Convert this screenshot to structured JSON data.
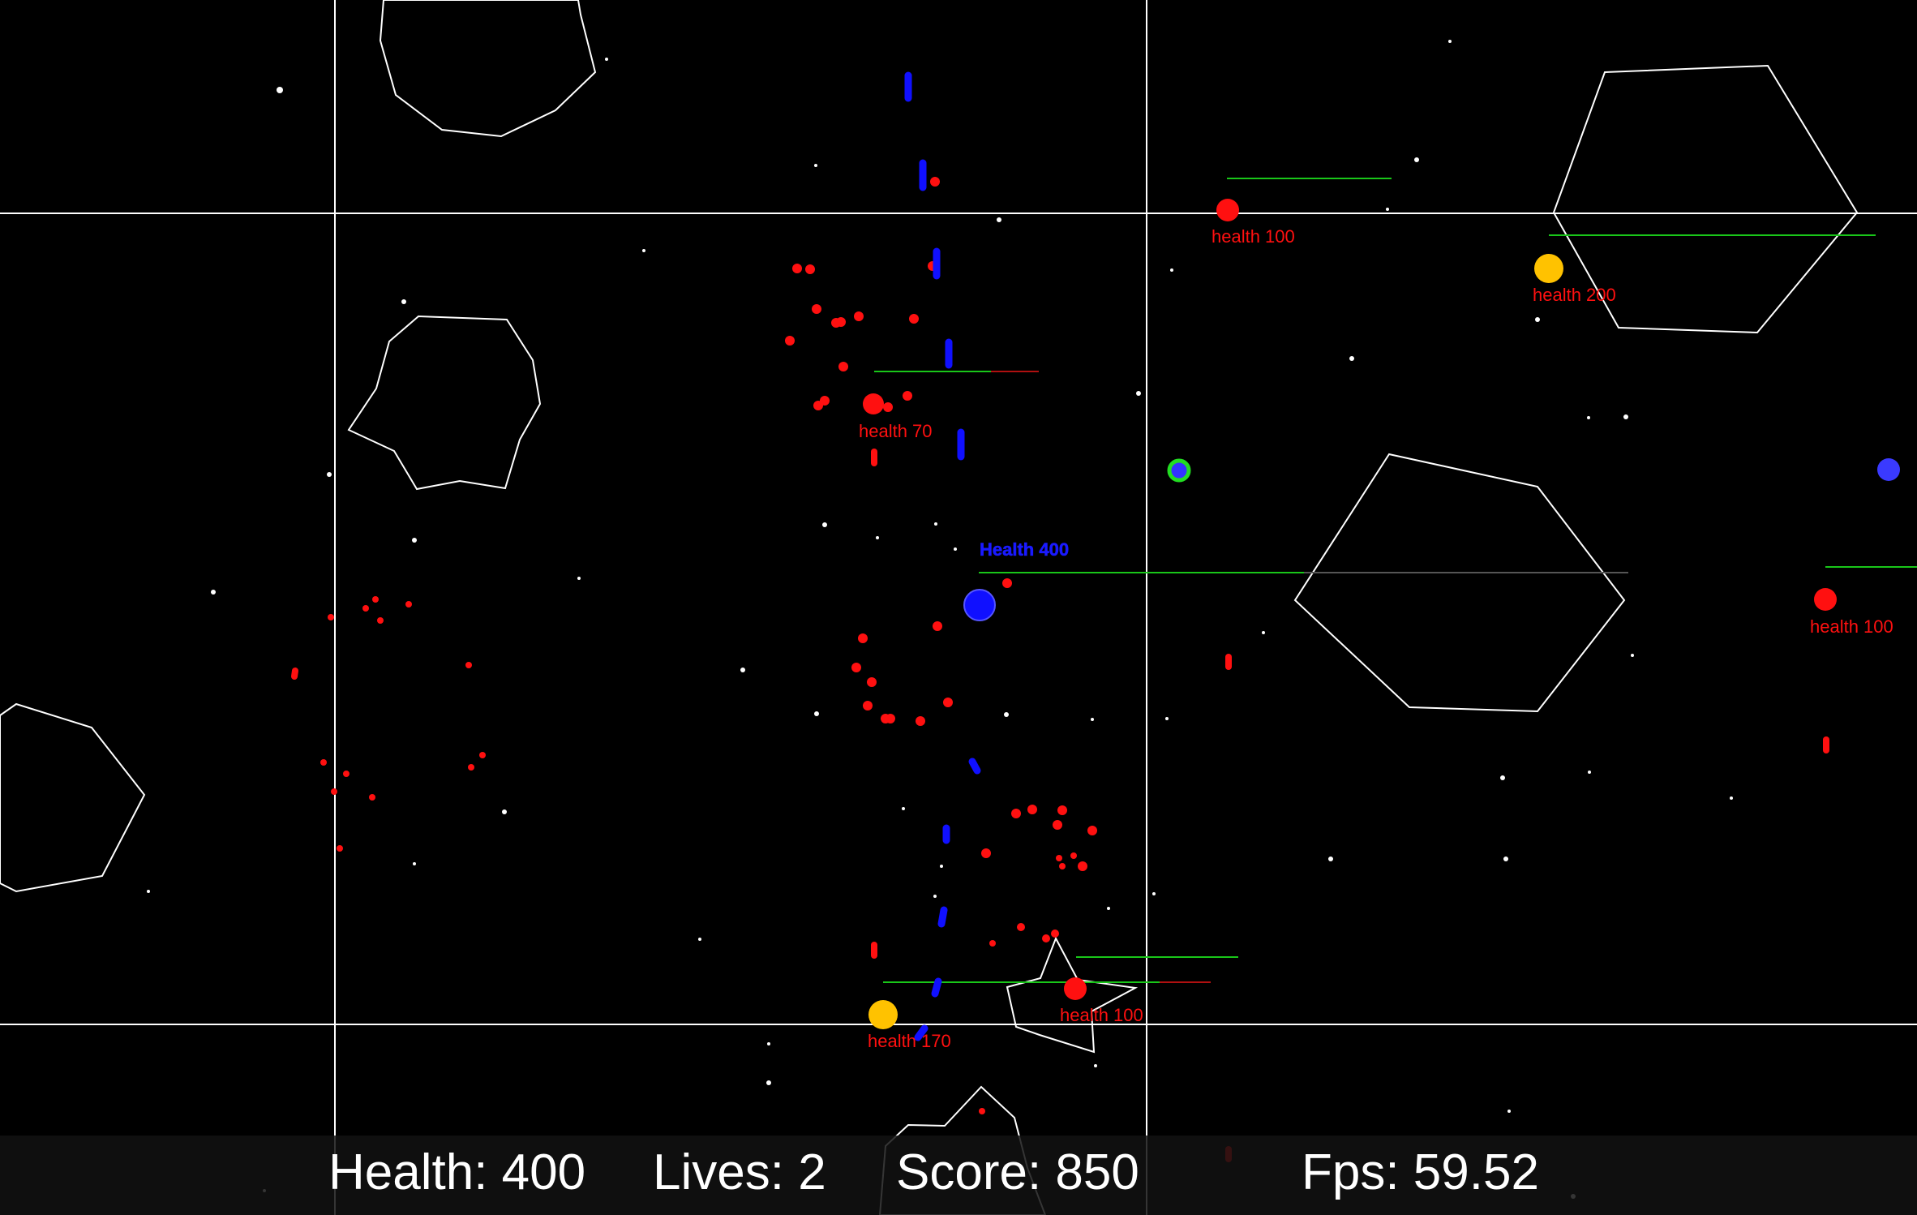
{
  "hud": {
    "health_label": "Health: 400",
    "lives_label": "Lives: 2",
    "score_label": "Score: 850",
    "fps_label": "Fps: 59.52"
  },
  "player": {
    "health_label": "Health 400",
    "health_fraction": 0.5,
    "color": "#1010ff"
  },
  "enemies": [
    {
      "label": "health 100",
      "color": "#ff1010",
      "health_fraction": 1.0
    },
    {
      "label": "health 200",
      "color": "#ffc200",
      "health_fraction": 1.0
    },
    {
      "label": "health 70",
      "color": "#ff1010",
      "health_fraction": 0.7
    },
    {
      "label": "health 100",
      "color": "#ff1010",
      "health_fraction": 1.0
    },
    {
      "label": "health 100",
      "color": "#ff1010",
      "health_fraction": 0.6
    },
    {
      "label": "health 170",
      "color": "#ffc200",
      "health_fraction": 1.0
    }
  ],
  "colors": {
    "background": "#000000",
    "grid": "#ffffff",
    "asteroid_outline": "#ffffff",
    "health_bar": "#19c619",
    "health_bar_lost": "#b01010",
    "enemy_bullet": "#ff1010",
    "player_bullet": "#1010ff",
    "pickup_ring": "#22dd22"
  }
}
